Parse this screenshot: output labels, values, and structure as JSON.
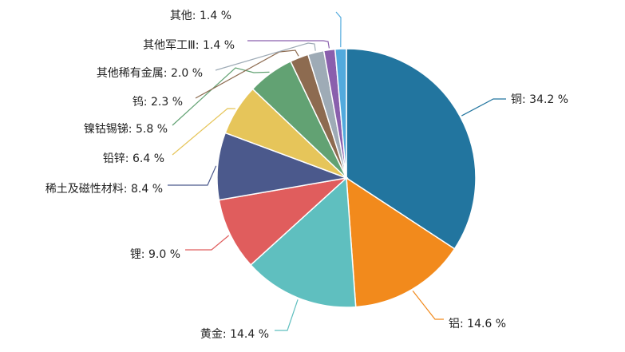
{
  "chart_data": {
    "type": "pie",
    "title": "",
    "unit": "%",
    "start": "top",
    "direction": "clockwise",
    "slices": [
      {
        "label": "铜",
        "value": 34.2,
        "color": "#22759f"
      },
      {
        "label": "铝",
        "value": 14.6,
        "color": "#f28a1c"
      },
      {
        "label": "黄金",
        "value": 14.4,
        "color": "#5fbfbf"
      },
      {
        "label": "锂",
        "value": 9.0,
        "color": "#e05d5d"
      },
      {
        "label": "稀土及磁性材料",
        "value": 8.4,
        "color": "#4b598c"
      },
      {
        "label": "铅锌",
        "value": 6.4,
        "color": "#e6c55a"
      },
      {
        "label": "镍钴锡锑",
        "value": 5.8,
        "color": "#62a273"
      },
      {
        "label": "钨",
        "value": 2.3,
        "color": "#8d6b50"
      },
      {
        "label": "其他稀有金属",
        "value": 2.0,
        "color": "#9eabb6"
      },
      {
        "label": "其他军工Ⅲ",
        "value": 1.4,
        "color": "#8a5fad"
      },
      {
        "label": "其他",
        "value": 1.4,
        "color": "#52aadd"
      }
    ]
  }
}
